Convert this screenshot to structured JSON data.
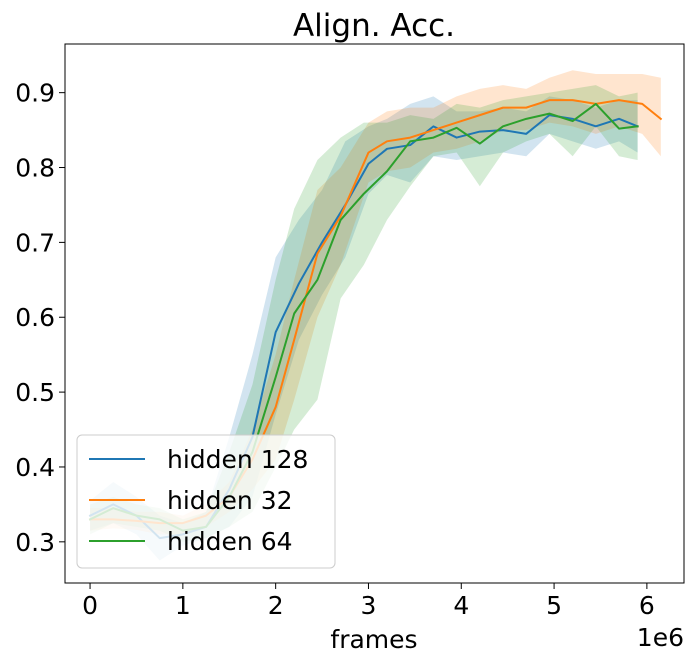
{
  "chart_data": {
    "type": "line",
    "title": "Align. Acc.",
    "xlabel": "frames",
    "ylabel": "",
    "x_multiplier_label": "1e6",
    "xlim": [
      -0.27,
      6.4
    ],
    "ylim": [
      0.245,
      0.965
    ],
    "xticks": [
      0,
      1,
      2,
      3,
      4,
      5,
      6
    ],
    "xtick_labels": [
      "0",
      "1",
      "2",
      "3",
      "4",
      "5",
      "6"
    ],
    "yticks": [
      0.3,
      0.4,
      0.5,
      0.6,
      0.7,
      0.8,
      0.9
    ],
    "ytick_labels": [
      "0.3",
      "0.4",
      "0.5",
      "0.6",
      "0.7",
      "0.8",
      "0.9"
    ],
    "grid": false,
    "legend_position": "lower-left",
    "series": [
      {
        "name": "hidden 128",
        "color": "#1f77b4",
        "x": [
          0.0,
          0.25,
          0.5,
          0.75,
          1.0,
          1.25,
          1.5,
          1.75,
          2.0,
          2.25,
          2.5,
          2.75,
          3.0,
          3.2,
          3.45,
          3.7,
          3.95,
          4.2,
          4.45,
          4.7,
          4.95,
          5.2,
          5.45,
          5.7,
          5.9
        ],
        "y": [
          0.335,
          0.35,
          0.335,
          0.305,
          0.31,
          0.32,
          0.37,
          0.44,
          0.58,
          0.645,
          0.7,
          0.75,
          0.805,
          0.825,
          0.83,
          0.855,
          0.84,
          0.848,
          0.85,
          0.845,
          0.87,
          0.865,
          0.855,
          0.865,
          0.855
        ],
        "upper": [
          0.355,
          0.38,
          0.36,
          0.335,
          0.325,
          0.34,
          0.44,
          0.55,
          0.68,
          0.73,
          0.77,
          0.835,
          0.855,
          0.865,
          0.885,
          0.895,
          0.875,
          0.875,
          0.88,
          0.875,
          0.895,
          0.89,
          0.88,
          0.89,
          0.89
        ],
        "lower": [
          0.315,
          0.325,
          0.31,
          0.275,
          0.295,
          0.305,
          0.32,
          0.36,
          0.47,
          0.57,
          0.63,
          0.68,
          0.765,
          0.79,
          0.78,
          0.815,
          0.81,
          0.815,
          0.82,
          0.815,
          0.845,
          0.835,
          0.825,
          0.835,
          0.82
        ]
      },
      {
        "name": "hidden 32",
        "color": "#ff7f0e",
        "x": [
          0.0,
          0.25,
          0.5,
          0.75,
          1.0,
          1.25,
          1.5,
          1.75,
          2.0,
          2.2,
          2.45,
          2.7,
          3.0,
          3.2,
          3.45,
          3.7,
          3.95,
          4.2,
          4.45,
          4.7,
          4.95,
          5.2,
          5.45,
          5.7,
          5.95,
          6.15
        ],
        "y": [
          0.33,
          0.33,
          0.328,
          0.325,
          0.325,
          0.335,
          0.36,
          0.41,
          0.48,
          0.57,
          0.685,
          0.735,
          0.82,
          0.835,
          0.84,
          0.85,
          0.86,
          0.87,
          0.88,
          0.88,
          0.89,
          0.89,
          0.885,
          0.89,
          0.885,
          0.865
        ],
        "upper": [
          0.345,
          0.345,
          0.34,
          0.34,
          0.335,
          0.35,
          0.38,
          0.45,
          0.55,
          0.65,
          0.77,
          0.8,
          0.86,
          0.875,
          0.88,
          0.88,
          0.895,
          0.905,
          0.91,
          0.905,
          0.92,
          0.93,
          0.925,
          0.925,
          0.925,
          0.92
        ],
        "lower": [
          0.315,
          0.318,
          0.316,
          0.31,
          0.31,
          0.32,
          0.34,
          0.37,
          0.41,
          0.49,
          0.6,
          0.67,
          0.78,
          0.795,
          0.8,
          0.82,
          0.825,
          0.835,
          0.85,
          0.85,
          0.86,
          0.855,
          0.845,
          0.855,
          0.845,
          0.815
        ]
      },
      {
        "name": "hidden 64",
        "color": "#2ca02c",
        "x": [
          0.0,
          0.25,
          0.5,
          0.75,
          1.0,
          1.25,
          1.5,
          1.75,
          2.0,
          2.2,
          2.45,
          2.7,
          2.95,
          3.2,
          3.45,
          3.7,
          3.95,
          4.2,
          4.45,
          4.7,
          4.95,
          5.2,
          5.45,
          5.7,
          5.9
        ],
        "y": [
          0.33,
          0.345,
          0.335,
          0.33,
          0.315,
          0.32,
          0.36,
          0.42,
          0.52,
          0.605,
          0.65,
          0.73,
          0.765,
          0.795,
          0.835,
          0.84,
          0.853,
          0.832,
          0.855,
          0.865,
          0.872,
          0.862,
          0.885,
          0.852,
          0.855
        ],
        "upper": [
          0.35,
          0.36,
          0.35,
          0.345,
          0.33,
          0.34,
          0.42,
          0.51,
          0.65,
          0.745,
          0.81,
          0.84,
          0.86,
          0.86,
          0.87,
          0.865,
          0.885,
          0.88,
          0.89,
          0.895,
          0.9,
          0.905,
          0.91,
          0.895,
          0.9
        ],
        "lower": [
          0.31,
          0.325,
          0.32,
          0.315,
          0.3,
          0.305,
          0.32,
          0.34,
          0.4,
          0.45,
          0.49,
          0.625,
          0.67,
          0.73,
          0.775,
          0.815,
          0.82,
          0.775,
          0.82,
          0.835,
          0.845,
          0.815,
          0.855,
          0.815,
          0.81
        ]
      }
    ]
  }
}
